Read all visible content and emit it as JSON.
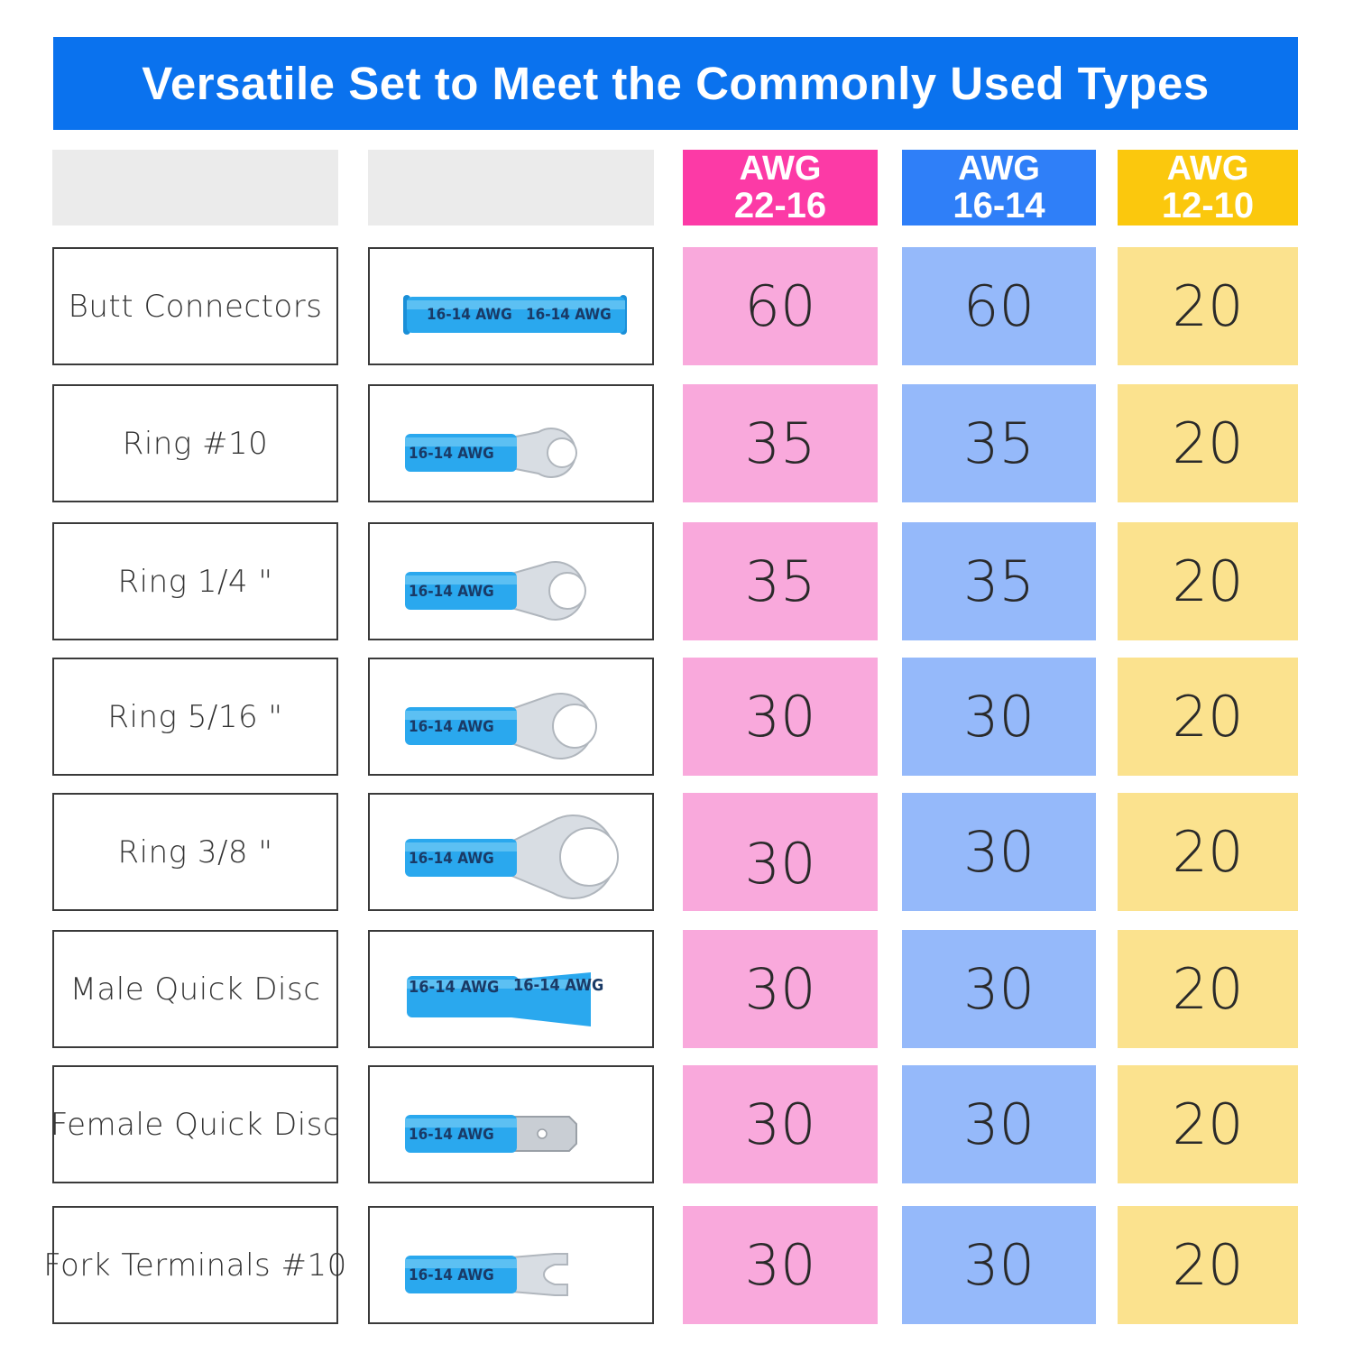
{
  "title": "Versatile Set to Meet the Commonly Used Types",
  "colors": {
    "banner": "#0a72ee",
    "awg_22_16": "#fc3aa6",
    "awg_16_14": "#2f7ff8",
    "awg_12_10": "#fbc80d",
    "awg_22_16_cell": "#f9a9dc",
    "awg_16_14_cell": "#95b9fa",
    "awg_12_10_cell": "#fbe28e",
    "connector_sleeve": "#2aa8ee"
  },
  "columns": [
    {
      "line1": "AWG",
      "line2": "22-16"
    },
    {
      "line1": "AWG",
      "line2": "16-14"
    },
    {
      "line1": "AWG",
      "line2": "12-10"
    }
  ],
  "rows": [
    {
      "name": "Butt Connectors",
      "image": "butt-connector-icon",
      "sleeve_text": "16-14 AWG",
      "counts": [
        "60",
        "60",
        "20"
      ]
    },
    {
      "name": "Ring #10",
      "image": "ring-terminal-10-icon",
      "sleeve_text": "16-14 AWG",
      "counts": [
        "35",
        "35",
        "20"
      ]
    },
    {
      "name": "Ring 1/4 \"",
      "image": "ring-terminal-quarter-icon",
      "sleeve_text": "16-14 AWG",
      "counts": [
        "35",
        "35",
        "20"
      ]
    },
    {
      "name": "Ring 5/16 \"",
      "image": "ring-terminal-5-16-icon",
      "sleeve_text": "16-14 AWG",
      "counts": [
        "30",
        "30",
        "20"
      ]
    },
    {
      "name": "Ring 3/8 \"",
      "image": "ring-terminal-3-8-icon",
      "sleeve_text": "16-14 AWG",
      "counts": [
        "30",
        "30",
        "20"
      ]
    },
    {
      "name": "Male Quick Disc",
      "image": "male-quick-disconnect-icon",
      "sleeve_text": "16-14 AWG",
      "counts": [
        "30",
        "30",
        "20"
      ]
    },
    {
      "name": "Female Quick Disc",
      "image": "female-quick-disconnect-icon",
      "sleeve_text": "16-14 AWG",
      "counts": [
        "30",
        "30",
        "20"
      ]
    },
    {
      "name": "Fork Terminals #10",
      "image": "fork-terminal-icon",
      "sleeve_text": "16-14 AWG",
      "counts": [
        "30",
        "30",
        "20"
      ]
    }
  ]
}
